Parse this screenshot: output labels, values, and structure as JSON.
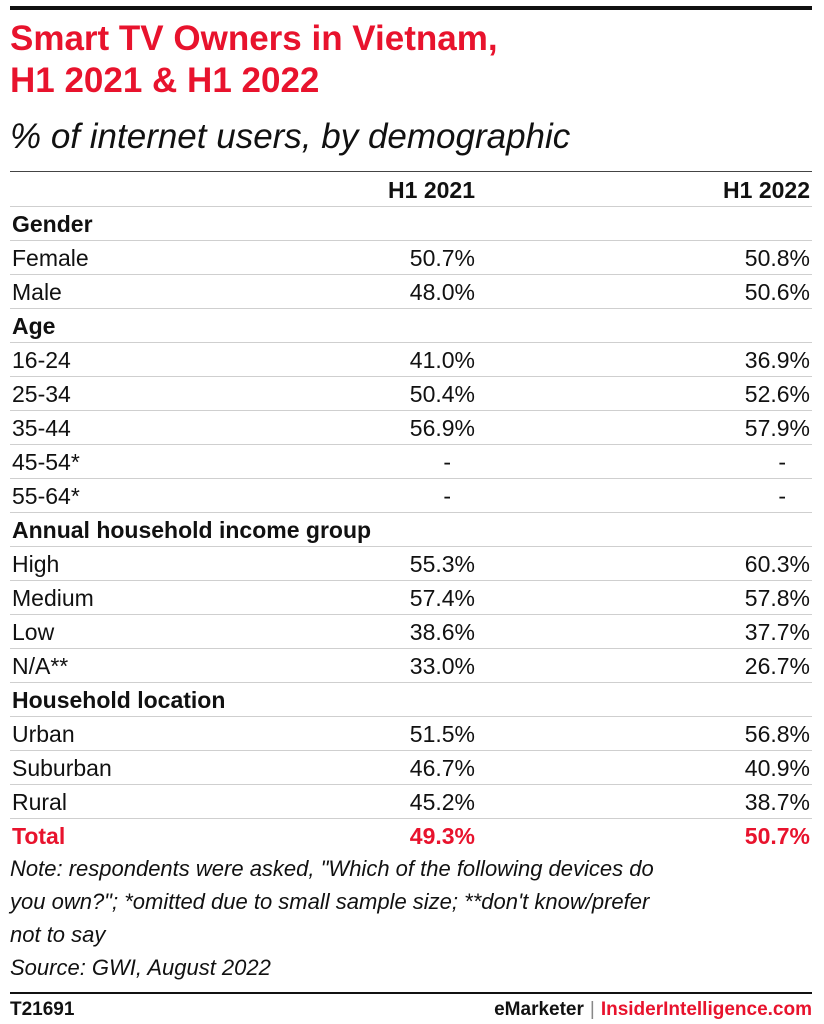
{
  "title_lines": [
    "Smart TV Owners in Vietnam,",
    "H1 2021 & H1 2022"
  ],
  "subtitle": "% of internet users, by demographic",
  "columns": [
    "H1 2021",
    "H1 2022"
  ],
  "rows": [
    {
      "type": "section",
      "label": "Gender"
    },
    {
      "type": "data",
      "label": "Female",
      "v1": "50.7%",
      "v2": "50.8%"
    },
    {
      "type": "data",
      "label": "Male",
      "v1": "48.0%",
      "v2": "50.6%"
    },
    {
      "type": "section",
      "label": "Age"
    },
    {
      "type": "data",
      "label": "16-24",
      "v1": "41.0%",
      "v2": "36.9%"
    },
    {
      "type": "data",
      "label": "25-34",
      "v1": "50.4%",
      "v2": "52.6%"
    },
    {
      "type": "data",
      "label": "35-44",
      "v1": "56.9%",
      "v2": "57.9%"
    },
    {
      "type": "data",
      "label": "45-54*",
      "v1": "-",
      "v2": "-"
    },
    {
      "type": "data",
      "label": "55-64*",
      "v1": "-",
      "v2": "-"
    },
    {
      "type": "section",
      "label": "Annual household income group"
    },
    {
      "type": "data",
      "label": "High",
      "v1": "55.3%",
      "v2": "60.3%"
    },
    {
      "type": "data",
      "label": "Medium",
      "v1": "57.4%",
      "v2": "57.8%"
    },
    {
      "type": "data",
      "label": "Low",
      "v1": "38.6%",
      "v2": "37.7%"
    },
    {
      "type": "data",
      "label": "N/A**",
      "v1": "33.0%",
      "v2": "26.7%"
    },
    {
      "type": "section",
      "label": "Household location"
    },
    {
      "type": "data",
      "label": "Urban",
      "v1": "51.5%",
      "v2": "56.8%"
    },
    {
      "type": "data",
      "label": "Suburban",
      "v1": "46.7%",
      "v2": "40.9%"
    },
    {
      "type": "data",
      "label": "Rural",
      "v1": "45.2%",
      "v2": "38.7%"
    },
    {
      "type": "total",
      "label": "Total",
      "v1": "49.3%",
      "v2": "50.7%"
    }
  ],
  "note_lines": [
    "Note: respondents were asked, \"Which of the following devices do",
    "you own?\"; *omitted due to small sample size; **don't know/prefer",
    "not to say",
    "Source: GWI, August 2022"
  ],
  "footer": {
    "id": "T21691",
    "brand_left": "eMarketer",
    "separator": "|",
    "brand_right": "InsiderIntelligence.com"
  },
  "colors": {
    "accent": "#e8132d",
    "text": "#111111"
  },
  "chart_data": {
    "type": "table",
    "title": "Smart TV Owners in Vietnam, H1 2021 & H1 2022",
    "subtitle": "% of internet users, by demographic",
    "columns": [
      "H1 2021",
      "H1 2022"
    ],
    "groups": [
      {
        "name": "Gender",
        "rows": [
          {
            "label": "Female",
            "values": [
              50.7,
              50.8
            ]
          },
          {
            "label": "Male",
            "values": [
              48.0,
              50.6
            ]
          }
        ]
      },
      {
        "name": "Age",
        "rows": [
          {
            "label": "16-24",
            "values": [
              41.0,
              36.9
            ]
          },
          {
            "label": "25-34",
            "values": [
              50.4,
              52.6
            ]
          },
          {
            "label": "35-44",
            "values": [
              56.9,
              57.9
            ]
          },
          {
            "label": "45-54*",
            "values": [
              null,
              null
            ]
          },
          {
            "label": "55-64*",
            "values": [
              null,
              null
            ]
          }
        ]
      },
      {
        "name": "Annual household income group",
        "rows": [
          {
            "label": "High",
            "values": [
              55.3,
              60.3
            ]
          },
          {
            "label": "Medium",
            "values": [
              57.4,
              57.8
            ]
          },
          {
            "label": "Low",
            "values": [
              38.6,
              37.7
            ]
          },
          {
            "label": "N/A**",
            "values": [
              33.0,
              26.7
            ]
          }
        ]
      },
      {
        "name": "Household location",
        "rows": [
          {
            "label": "Urban",
            "values": [
              51.5,
              56.8
            ]
          },
          {
            "label": "Suburban",
            "values": [
              46.7,
              40.9
            ]
          },
          {
            "label": "Rural",
            "values": [
              45.2,
              38.7
            ]
          }
        ]
      }
    ],
    "total": {
      "label": "Total",
      "values": [
        49.3,
        50.7
      ]
    }
  }
}
